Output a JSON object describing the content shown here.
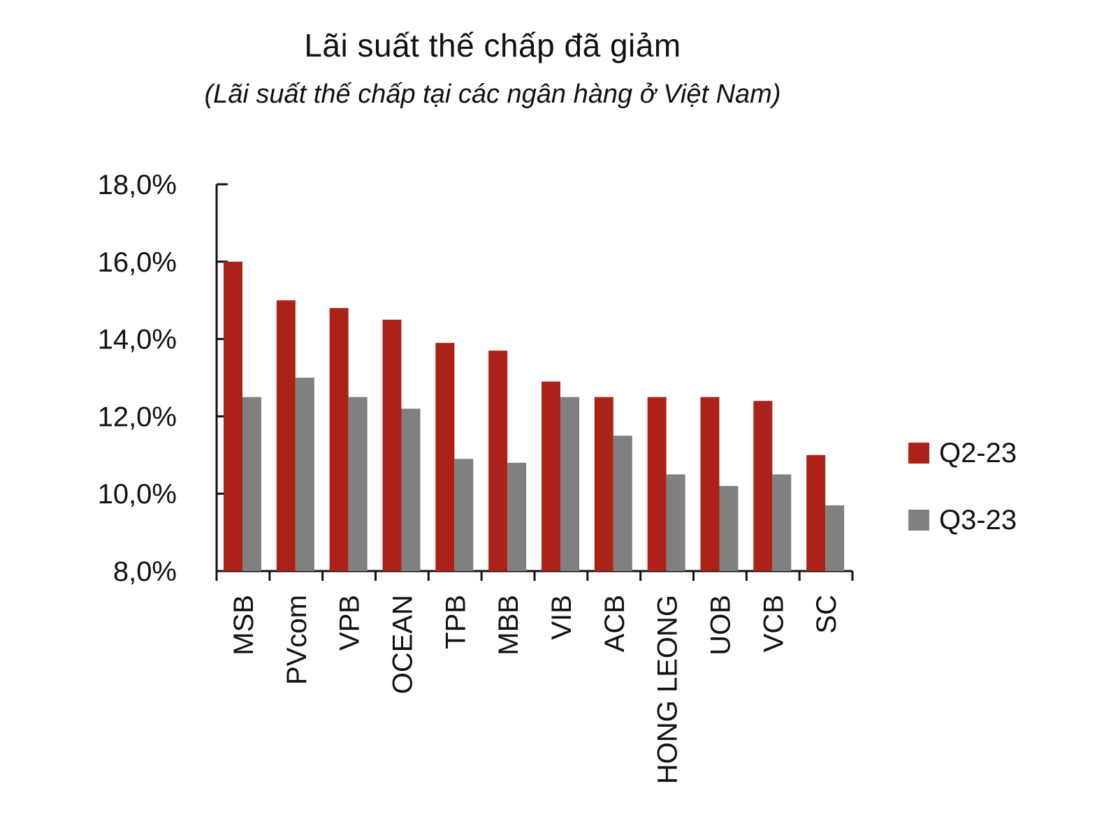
{
  "chart_data": {
    "type": "bar",
    "title": "Lãi suất thế chấp đã giảm",
    "subtitle": "(Lãi suất thế chấp tại các ngân hàng ở Việt Nam)",
    "xlabel": "",
    "ylabel": "",
    "categories": [
      "MSB",
      "PVcom",
      "VPB",
      "OCEAN",
      "TPB",
      "MBB",
      "VIB",
      "ACB",
      "HONG LEONG",
      "UOB",
      "VCB",
      "SC"
    ],
    "series": [
      {
        "name": "Q2-23",
        "color": "#ad2218",
        "values": [
          16.0,
          15.0,
          14.8,
          14.5,
          13.9,
          13.7,
          12.9,
          12.5,
          12.5,
          12.5,
          12.4,
          11.0
        ]
      },
      {
        "name": "Q3-23",
        "color": "#808080",
        "values": [
          12.5,
          13.0,
          12.5,
          12.2,
          10.9,
          10.8,
          12.5,
          11.5,
          10.5,
          10.2,
          10.5,
          9.7
        ]
      }
    ],
    "ylim": [
      8.0,
      18.0
    ],
    "yticks": [
      8.0,
      10.0,
      12.0,
      14.0,
      16.0,
      18.0
    ],
    "ytick_labels": [
      "8,0%",
      "10,0%",
      "12,0%",
      "14,0%",
      "16,0%",
      "18,0%"
    ],
    "grid": false,
    "legend": "right"
  }
}
